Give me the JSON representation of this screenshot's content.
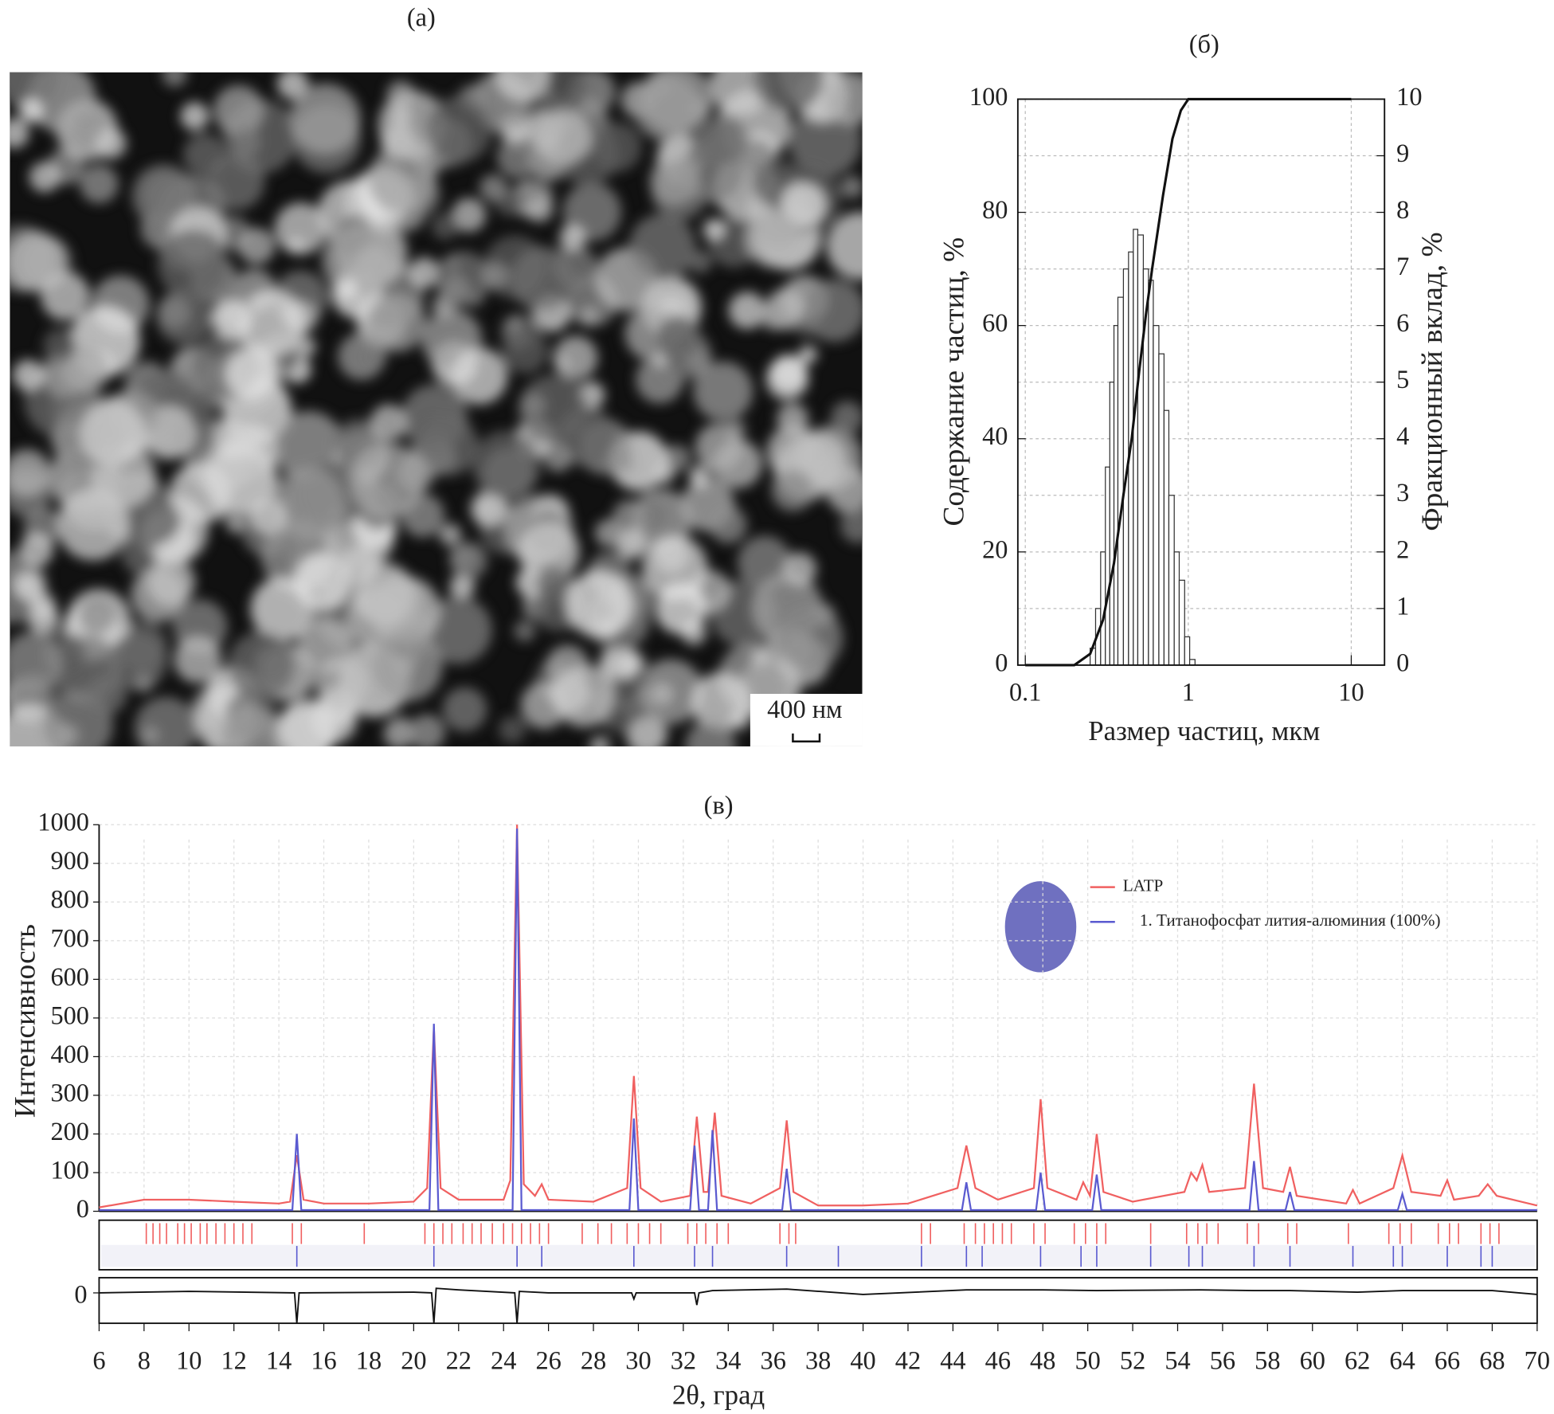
{
  "chart_data": [
    {
      "type": "image",
      "title": "(а)",
      "scale_bar": "400 нм"
    },
    {
      "type": "combo",
      "title": "(б)",
      "xlabel": "Размер частиц, мкм",
      "ylabel": "Содержание частиц, %",
      "y2label": "Фракционный вклад, %",
      "log_x": true,
      "grid": true,
      "xlim": [
        0.09,
        16
      ],
      "xticks": [
        0.1,
        1,
        10
      ],
      "ylim": [
        0,
        100
      ],
      "yticks": [
        0,
        20,
        40,
        60,
        80,
        100
      ],
      "y2lim": [
        0,
        10
      ],
      "y2ticks": [
        0,
        1,
        2,
        3,
        4,
        5,
        6,
        7,
        8,
        9,
        10
      ],
      "histogram": {
        "axis": "y2",
        "color": "#333333",
        "bins": [
          0.25,
          0.27,
          0.29,
          0.31,
          0.33,
          0.35,
          0.37,
          0.4,
          0.43,
          0.46,
          0.49,
          0.53,
          0.57,
          0.61,
          0.66,
          0.71,
          0.76,
          0.82,
          0.88,
          0.95,
          1.02,
          1.1
        ],
        "values": [
          0.3,
          1,
          2,
          3.5,
          5,
          6,
          6.5,
          7,
          7.3,
          7.7,
          7.6,
          7,
          6.8,
          6,
          5.5,
          4.5,
          3,
          2,
          1.5,
          0.5,
          0.1
        ]
      },
      "line": {
        "color": "#111111",
        "x": [
          0.1,
          0.2,
          0.25,
          0.3,
          0.35,
          0.4,
          0.45,
          0.5,
          0.55,
          0.6,
          0.7,
          0.8,
          0.9,
          1.0,
          1.1,
          10
        ],
        "values": [
          0,
          0,
          2,
          8,
          18,
          30,
          40,
          52,
          62,
          70,
          83,
          93,
          98,
          100,
          100,
          100
        ]
      }
    },
    {
      "type": "line",
      "title": "(в)",
      "xlabel": "2θ, град",
      "ylabel": "Интенсивность",
      "grid": true,
      "xlim": [
        6,
        70
      ],
      "xticks": [
        6,
        8,
        10,
        12,
        14,
        16,
        18,
        20,
        22,
        24,
        26,
        28,
        30,
        32,
        34,
        36,
        38,
        40,
        42,
        44,
        46,
        48,
        50,
        52,
        54,
        56,
        58,
        60,
        62,
        64,
        66,
        68,
        70
      ],
      "ylim": [
        0,
        1000
      ],
      "yticks": [
        0,
        100,
        200,
        300,
        400,
        500,
        600,
        700,
        800,
        900,
        1000
      ],
      "series": [
        {
          "name": "LATP",
          "color": "#f06060",
          "x": [
            6,
            8,
            10,
            12,
            14,
            14.5,
            14.8,
            15.1,
            16,
            18,
            20,
            20.6,
            20.9,
            21.2,
            22,
            24,
            24.3,
            24.6,
            24.9,
            25.4,
            25.7,
            26,
            28,
            29.5,
            29.8,
            30.1,
            31,
            32.3,
            32.6,
            32.9,
            33.1,
            33.4,
            33.7,
            35,
            36.3,
            36.6,
            36.9,
            38,
            40,
            42,
            44.2,
            44.6,
            45,
            46,
            47.6,
            47.9,
            48.2,
            49.5,
            49.8,
            50.1,
            50.4,
            50.7,
            52,
            54.3,
            54.6,
            54.85,
            55.1,
            55.4,
            57,
            57.4,
            57.8,
            58.7,
            59,
            59.3,
            61.5,
            61.8,
            62.1,
            63.6,
            64,
            64.4,
            65.7,
            66,
            66.3,
            67.4,
            67.8,
            68.2,
            70
          ],
          "values": [
            10,
            30,
            30,
            25,
            20,
            25,
            145,
            30,
            20,
            20,
            25,
            60,
            475,
            60,
            30,
            30,
            80,
            1000,
            70,
            40,
            70,
            30,
            25,
            60,
            350,
            60,
            25,
            40,
            245,
            50,
            50,
            255,
            40,
            20,
            60,
            235,
            50,
            15,
            15,
            20,
            60,
            170,
            60,
            30,
            60,
            290,
            60,
            30,
            75,
            40,
            200,
            50,
            25,
            50,
            100,
            80,
            120,
            50,
            60,
            330,
            60,
            50,
            115,
            40,
            20,
            55,
            20,
            60,
            145,
            50,
            40,
            80,
            30,
            40,
            70,
            40,
            15
          ],
          "reflections": [
            8.1,
            8.4,
            8.7,
            9.0,
            9.5,
            9.8,
            10.1,
            10.5,
            10.8,
            11.2,
            11.6,
            12.0,
            12.4,
            12.8,
            14.6,
            15.0,
            17.8,
            20.5,
            20.9,
            21.3,
            21.7,
            22.2,
            22.6,
            23.0,
            23.5,
            24.0,
            24.4,
            24.8,
            25.2,
            25.6,
            26.0,
            27.5,
            28.2,
            28.8,
            29.5,
            30.0,
            30.5,
            31.0,
            32.2,
            32.6,
            33.0,
            33.5,
            34.0,
            36.3,
            36.7,
            37.0,
            42.6,
            43.0,
            44.5,
            45.0,
            45.4,
            45.8,
            46.2,
            46.6,
            47.6,
            48.1,
            49.4,
            49.9,
            50.4,
            50.8,
            52.8,
            54.4,
            54.9,
            55.3,
            55.8,
            57.1,
            57.6,
            58.9,
            59.3,
            61.6,
            63.4,
            63.9,
            64.4,
            65.6,
            66.1,
            66.5,
            67.5,
            67.9,
            68.3
          ]
        },
        {
          "name": "1. Титанофосфат лития-алюминия (100%)",
          "color": "#5a5ad0",
          "x": [
            6,
            14.6,
            14.8,
            15.0,
            20.7,
            20.9,
            21.1,
            24.4,
            24.6,
            24.8,
            29.6,
            29.8,
            30.0,
            32.3,
            32.5,
            32.7,
            33.1,
            33.3,
            33.5,
            36.4,
            36.6,
            36.8,
            44.4,
            44.6,
            44.8,
            47.7,
            47.9,
            48.1,
            50.2,
            50.4,
            50.6,
            57.2,
            57.4,
            57.6,
            58.8,
            59,
            59.2,
            63.8,
            64,
            64.2,
            70
          ],
          "values": [
            3,
            3,
            200,
            3,
            3,
            485,
            3,
            3,
            990,
            3,
            3,
            240,
            3,
            3,
            170,
            3,
            3,
            210,
            3,
            3,
            110,
            3,
            3,
            75,
            3,
            3,
            100,
            3,
            3,
            95,
            3,
            3,
            130,
            3,
            3,
            50,
            3,
            3,
            45,
            3,
            3
          ],
          "reflections": [
            14.8,
            20.9,
            24.6,
            25.7,
            29.8,
            32.5,
            33.3,
            36.6,
            38.9,
            42.6,
            44.6,
            45.3,
            47.9,
            49.7,
            50.4,
            52.8,
            54.5,
            55.1,
            57.4,
            59.0,
            61.8,
            63.6,
            64.0,
            66.0,
            67.5,
            68.0
          ]
        }
      ],
      "difference": {
        "color": "#111111",
        "ylim": [
          -200,
          100
        ],
        "yticks": [
          0
        ],
        "x": [
          6,
          10,
          14.7,
          14.8,
          14.9,
          20,
          20.8,
          20.9,
          21.0,
          22,
          24.5,
          24.6,
          24.7,
          26,
          29.7,
          29.8,
          29.9,
          32.5,
          32.6,
          32.7,
          33.3,
          36.6,
          40,
          44.6,
          48,
          50.4,
          55,
          57.4,
          59,
          62,
          64,
          66,
          68,
          70
        ],
        "values": [
          0,
          10,
          0,
          -200,
          0,
          5,
          0,
          -200,
          30,
          20,
          0,
          -200,
          10,
          0,
          0,
          -40,
          0,
          0,
          -80,
          0,
          15,
          25,
          -10,
          20,
          20,
          15,
          20,
          15,
          15,
          5,
          15,
          15,
          15,
          -10
        ]
      }
    }
  ]
}
